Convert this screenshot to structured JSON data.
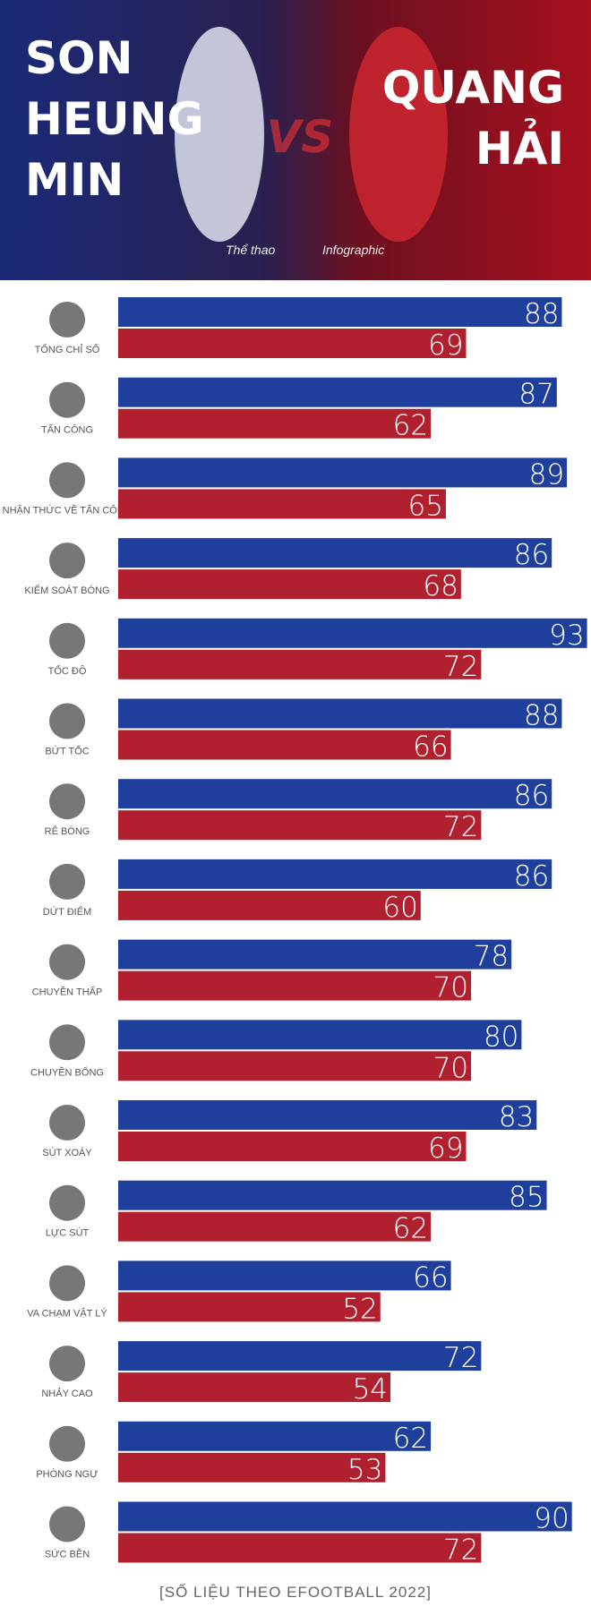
{
  "header": {
    "subtitle_left": "Thể thao",
    "subtitle_right": "Infographic",
    "vs": "VS"
  },
  "chart_data": {
    "type": "bar",
    "orientation": "horizontal",
    "categories": [
      "TỔNG CHỈ SỐ",
      "TẤN CÔNG",
      "NHẬN THỨC VỀ TẤN CÔNG",
      "KIỂM SOÁT BÓNG",
      "TỐC ĐỘ",
      "BỨT TỐC",
      "RÊ BÓNG",
      "DỨT ĐIỂM",
      "CHUYỀN THẤP",
      "CHUYỀN BỔNG",
      "SÚT XOÁY",
      "LỰC SÚT",
      "VA CHẠM VẬT LÝ",
      "NHẢY CAO",
      "PHÒNG NGỰ",
      "SỨC BỀN"
    ],
    "series": [
      {
        "name": "SON HEUNG MIN",
        "color": "#1e3f9b",
        "values": [
          88,
          87,
          89,
          86,
          93,
          88,
          86,
          86,
          78,
          80,
          83,
          85,
          66,
          72,
          62,
          90
        ]
      },
      {
        "name": "QUANG HẢI",
        "color": "#b1202f",
        "values": [
          69,
          62,
          65,
          68,
          72,
          66,
          72,
          60,
          70,
          70,
          69,
          62,
          52,
          54,
          53,
          72
        ]
      }
    ]
  },
  "footer": "[SỐ LIỆU THEO EFOOTBALL 2022]"
}
